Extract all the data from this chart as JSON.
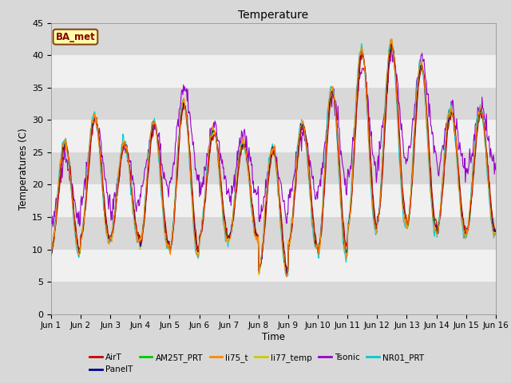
{
  "title": "Temperature",
  "xlabel": "Time",
  "ylabel": "Temperatures (C)",
  "annotation": "BA_met",
  "ylim": [
    0,
    45
  ],
  "series_colors": {
    "AirT": "#cc0000",
    "PanelT": "#000099",
    "AM25T_PRT": "#00cc00",
    "li75_t": "#ff8800",
    "li77_temp": "#cccc00",
    "Tsonic": "#9900cc",
    "NR01_PRT": "#00cccc"
  },
  "legend_order": [
    "AirT",
    "PanelT",
    "AM25T_PRT",
    "li75_t",
    "li77_temp",
    "Tsonic",
    "NR01_PRT"
  ],
  "x_tick_labels": [
    "Jun 1",
    "Jun 2",
    "Jun 3",
    "Jun 4",
    "Jun 5",
    "Jun 6",
    "Jun 7",
    "Jun 8",
    "Jun 9",
    "Jun 10",
    "Jun 11",
    "Jun 12",
    "Jun 13",
    "Jun 14",
    "Jun 15",
    "Jun 16"
  ],
  "bg_color": "#d8d8d8",
  "plot_bg_color": "#ffffff",
  "band_colors": [
    "#d8d8d8",
    "#f0f0f0"
  ],
  "day_amps": [
    8,
    9,
    7,
    9,
    11,
    8,
    7,
    9,
    9,
    12,
    13,
    13,
    12,
    9,
    9
  ],
  "day_bases": [
    18,
    21,
    19,
    20,
    21,
    20,
    19,
    16,
    20,
    22,
    27,
    28,
    26,
    22,
    22
  ],
  "tsonic_amps": [
    5,
    6,
    5,
    5,
    7,
    5,
    5,
    5,
    5,
    7,
    8,
    8,
    7,
    5,
    5
  ],
  "tsonic_bases": [
    19,
    24,
    21,
    24,
    28,
    24,
    23,
    20,
    23,
    27,
    30,
    32,
    32,
    27,
    27
  ]
}
